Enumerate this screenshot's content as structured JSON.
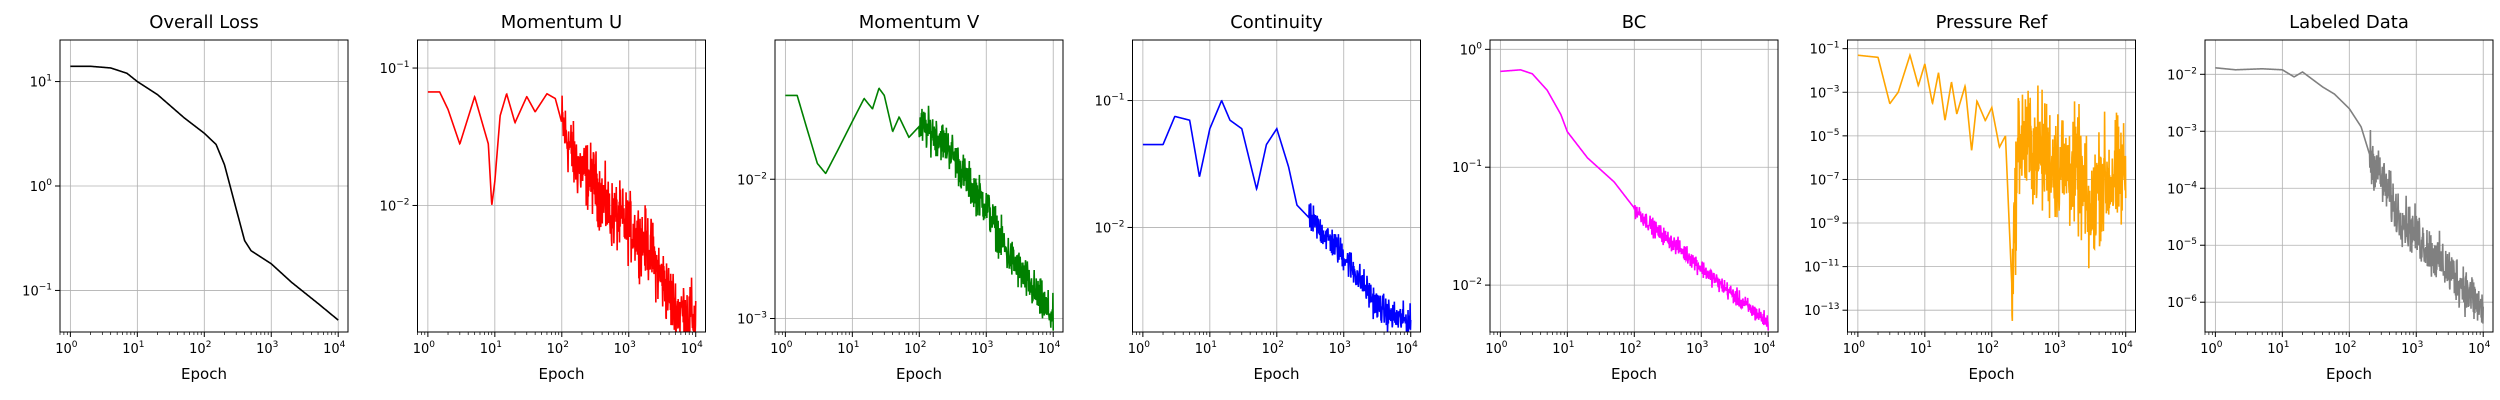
{
  "chart_data": [
    {
      "type": "line",
      "title": "Overall Loss",
      "xlabel": "Epoch",
      "ylabel": "",
      "xscale": "log",
      "yscale": "log",
      "grid": true,
      "xlim": [
        0.7,
        14000
      ],
      "ylim": [
        0.04,
        25
      ],
      "x_ticks": [
        {
          "base": "10",
          "exp": "0"
        },
        {
          "base": "10",
          "exp": "1"
        },
        {
          "base": "10",
          "exp": "2"
        },
        {
          "base": "10",
          "exp": "3"
        },
        {
          "base": "10",
          "exp": "4"
        }
      ],
      "y_ticks": [
        {
          "base": "10",
          "exp": "1"
        },
        {
          "base": "10",
          "exp": "0"
        },
        {
          "base": "10",
          "exp": "−1"
        }
      ],
      "series": [
        {
          "color": "#000000",
          "noise": 0.0,
          "noise_start": 300,
          "points": [
            [
              1,
              14
            ],
            [
              2,
              14
            ],
            [
              4,
              13.5
            ],
            [
              7,
              12
            ],
            [
              10,
              10
            ],
            [
              20,
              7.5
            ],
            [
              50,
              4.5
            ],
            [
              100,
              3.2
            ],
            [
              150,
              2.5
            ],
            [
              200,
              1.6
            ],
            [
              300,
              0.6
            ],
            [
              400,
              0.3
            ],
            [
              500,
              0.24
            ],
            [
              1000,
              0.18
            ],
            [
              2000,
              0.12
            ],
            [
              5000,
              0.075
            ],
            [
              10000,
              0.052
            ]
          ]
        }
      ]
    },
    {
      "type": "line",
      "title": "Momentum U",
      "xlabel": "Epoch",
      "ylabel": "",
      "xscale": "log",
      "yscale": "log",
      "grid": true,
      "xlim": [
        0.7,
        14000
      ],
      "ylim": [
        0.0012,
        0.16
      ],
      "x_ticks": [
        {
          "base": "10",
          "exp": "0"
        },
        {
          "base": "10",
          "exp": "1"
        },
        {
          "base": "10",
          "exp": "2"
        },
        {
          "base": "10",
          "exp": "3"
        },
        {
          "base": "10",
          "exp": "4"
        }
      ],
      "y_ticks": [
        {
          "base": "10",
          "exp": "−1"
        },
        {
          "base": "10",
          "exp": "−2"
        }
      ],
      "series": [
        {
          "color": "#ff0000",
          "noise": 0.2,
          "noise_start": 100,
          "points": [
            [
              1,
              0.067
            ],
            [
              1.5,
              0.067
            ],
            [
              2,
              0.05
            ],
            [
              3,
              0.028
            ],
            [
              5,
              0.062
            ],
            [
              8,
              0.028
            ],
            [
              9,
              0.01
            ],
            [
              10,
              0.015
            ],
            [
              12,
              0.045
            ],
            [
              15,
              0.065
            ],
            [
              20,
              0.04
            ],
            [
              30,
              0.062
            ],
            [
              40,
              0.048
            ],
            [
              60,
              0.065
            ],
            [
              80,
              0.06
            ],
            [
              100,
              0.04
            ],
            [
              150,
              0.022
            ],
            [
              200,
              0.018
            ],
            [
              300,
              0.015
            ],
            [
              500,
              0.009
            ],
            [
              1000,
              0.007
            ],
            [
              2000,
              0.005
            ],
            [
              3000,
              0.003
            ],
            [
              5000,
              0.0018
            ],
            [
              10000,
              0.0015
            ]
          ]
        }
      ]
    },
    {
      "type": "line",
      "title": "Momentum V",
      "xlabel": "Epoch",
      "ylabel": "",
      "xscale": "log",
      "yscale": "log",
      "grid": true,
      "xlim": [
        0.7,
        14000
      ],
      "ylim": [
        0.0008,
        0.1
      ],
      "x_ticks": [
        {
          "base": "10",
          "exp": "0"
        },
        {
          "base": "10",
          "exp": "1"
        },
        {
          "base": "10",
          "exp": "2"
        },
        {
          "base": "10",
          "exp": "3"
        },
        {
          "base": "10",
          "exp": "4"
        }
      ],
      "y_ticks": [
        {
          "base": "10",
          "exp": "−2"
        },
        {
          "base": "10",
          "exp": "−3"
        }
      ],
      "series": [
        {
          "color": "#008000",
          "noise": 0.12,
          "noise_start": 100,
          "points": [
            [
              1,
              0.04
            ],
            [
              1.5,
              0.04
            ],
            [
              2,
              0.025
            ],
            [
              3,
              0.013
            ],
            [
              4,
              0.011
            ],
            [
              6,
              0.016
            ],
            [
              10,
              0.026
            ],
            [
              15,
              0.038
            ],
            [
              20,
              0.032
            ],
            [
              25,
              0.045
            ],
            [
              30,
              0.04
            ],
            [
              40,
              0.022
            ],
            [
              50,
              0.028
            ],
            [
              70,
              0.02
            ],
            [
              100,
              0.024
            ],
            [
              150,
              0.022
            ],
            [
              200,
              0.02
            ],
            [
              300,
              0.016
            ],
            [
              500,
              0.01
            ],
            [
              1000,
              0.0065
            ],
            [
              2000,
              0.003
            ],
            [
              5000,
              0.0016
            ],
            [
              10000,
              0.001
            ]
          ]
        }
      ]
    },
    {
      "type": "line",
      "title": "Continuity",
      "xlabel": "Epoch",
      "ylabel": "",
      "xscale": "log",
      "yscale": "log",
      "grid": true,
      "xlim": [
        0.7,
        14000
      ],
      "ylim": [
        0.0015,
        0.3
      ],
      "x_ticks": [
        {
          "base": "10",
          "exp": "0"
        },
        {
          "base": "10",
          "exp": "1"
        },
        {
          "base": "10",
          "exp": "2"
        },
        {
          "base": "10",
          "exp": "3"
        },
        {
          "base": "10",
          "exp": "4"
        }
      ],
      "y_ticks": [
        {
          "base": "10",
          "exp": "−1"
        },
        {
          "base": "10",
          "exp": "−2"
        }
      ],
      "series": [
        {
          "color": "#0000ff",
          "noise": 0.1,
          "noise_start": 300,
          "points": [
            [
              1,
              0.045
            ],
            [
              2,
              0.045
            ],
            [
              3,
              0.075
            ],
            [
              5,
              0.07
            ],
            [
              7,
              0.025
            ],
            [
              10,
              0.06
            ],
            [
              15,
              0.1
            ],
            [
              20,
              0.07
            ],
            [
              30,
              0.06
            ],
            [
              50,
              0.02
            ],
            [
              70,
              0.045
            ],
            [
              100,
              0.06
            ],
            [
              150,
              0.03
            ],
            [
              200,
              0.015
            ],
            [
              300,
              0.012
            ],
            [
              500,
              0.009
            ],
            [
              1000,
              0.006
            ],
            [
              2000,
              0.0035
            ],
            [
              3000,
              0.0025
            ],
            [
              5000,
              0.002
            ],
            [
              10000,
              0.0018
            ]
          ]
        }
      ]
    },
    {
      "type": "line",
      "title": "BC",
      "xlabel": "Epoch",
      "ylabel": "",
      "xscale": "log",
      "yscale": "log",
      "grid": true,
      "xlim": [
        0.7,
        14000
      ],
      "ylim": [
        0.004,
        1.2
      ],
      "x_ticks": [
        {
          "base": "10",
          "exp": "0"
        },
        {
          "base": "10",
          "exp": "1"
        },
        {
          "base": "10",
          "exp": "2"
        },
        {
          "base": "10",
          "exp": "3"
        },
        {
          "base": "10",
          "exp": "4"
        }
      ],
      "y_ticks": [
        {
          "base": "10",
          "exp": "0"
        },
        {
          "base": "10",
          "exp": "−1"
        },
        {
          "base": "10",
          "exp": "−2"
        }
      ],
      "series": [
        {
          "color": "#ff00ff",
          "noise": 0.06,
          "noise_start": 100,
          "points": [
            [
              1,
              0.65
            ],
            [
              2,
              0.67
            ],
            [
              3,
              0.62
            ],
            [
              5,
              0.45
            ],
            [
              8,
              0.28
            ],
            [
              10,
              0.2
            ],
            [
              20,
              0.12
            ],
            [
              50,
              0.075
            ],
            [
              100,
              0.045
            ],
            [
              200,
              0.03
            ],
            [
              500,
              0.02
            ],
            [
              1000,
              0.014
            ],
            [
              2000,
              0.01
            ],
            [
              5000,
              0.0065
            ],
            [
              10000,
              0.0048
            ]
          ]
        }
      ]
    },
    {
      "type": "line",
      "title": "Pressure Ref",
      "xlabel": "Epoch",
      "ylabel": "",
      "xscale": "log",
      "yscale": "log",
      "grid": true,
      "xlim": [
        0.7,
        14000
      ],
      "ylim": [
        1e-14,
        0.25
      ],
      "x_ticks": [
        {
          "base": "10",
          "exp": "0"
        },
        {
          "base": "10",
          "exp": "1"
        },
        {
          "base": "10",
          "exp": "2"
        },
        {
          "base": "10",
          "exp": "3"
        },
        {
          "base": "10",
          "exp": "4"
        }
      ],
      "y_ticks": [
        {
          "base": "10",
          "exp": "−1"
        },
        {
          "base": "10",
          "exp": "−3"
        },
        {
          "base": "10",
          "exp": "−5"
        },
        {
          "base": "10",
          "exp": "−7"
        },
        {
          "base": "10",
          "exp": "−9"
        },
        {
          "base": "10",
          "exp": "−11"
        },
        {
          "base": "10",
          "exp": "−13"
        }
      ],
      "series": [
        {
          "color": "#ffa500",
          "noise": 2.2,
          "noise_start": 200,
          "points": [
            [
              1,
              0.05
            ],
            [
              2,
              0.04
            ],
            [
              3,
              0.0003
            ],
            [
              4,
              0.001
            ],
            [
              6,
              0.05
            ],
            [
              8,
              0.002
            ],
            [
              10,
              0.02
            ],
            [
              13,
              0.0003
            ],
            [
              16,
              0.008
            ],
            [
              20,
              5e-05
            ],
            [
              25,
              0.003
            ],
            [
              30,
              0.0001
            ],
            [
              40,
              0.002
            ],
            [
              50,
              2e-06
            ],
            [
              60,
              0.0004
            ],
            [
              80,
              5e-05
            ],
            [
              100,
              0.0002
            ],
            [
              130,
              3e-06
            ],
            [
              160,
              1e-05
            ],
            [
              200,
              1e-12
            ],
            [
              250,
              1e-05
            ],
            [
              300,
              5e-06
            ],
            [
              500,
              2e-06
            ],
            [
              1000,
              5e-07
            ],
            [
              2000,
              2e-07
            ],
            [
              3000,
              1e-09
            ],
            [
              4000,
              1e-07
            ],
            [
              6000,
              1e-07
            ],
            [
              10000,
              2e-07
            ]
          ]
        }
      ]
    },
    {
      "type": "line",
      "title": "Labeled Data",
      "xlabel": "Epoch",
      "ylabel": "",
      "xscale": "log",
      "yscale": "log",
      "grid": true,
      "xlim": [
        0.7,
        14000
      ],
      "ylim": [
        3e-07,
        0.04
      ],
      "x_ticks": [
        {
          "base": "10",
          "exp": "0"
        },
        {
          "base": "10",
          "exp": "1"
        },
        {
          "base": "10",
          "exp": "2"
        },
        {
          "base": "10",
          "exp": "3"
        },
        {
          "base": "10",
          "exp": "4"
        }
      ],
      "y_ticks": [
        {
          "base": "10",
          "exp": "−2"
        },
        {
          "base": "10",
          "exp": "−3"
        },
        {
          "base": "10",
          "exp": "−4"
        },
        {
          "base": "10",
          "exp": "−5"
        },
        {
          "base": "10",
          "exp": "−6"
        }
      ],
      "series": [
        {
          "color": "#808080",
          "noise": 0.35,
          "noise_start": 200,
          "points": [
            [
              1,
              0.013
            ],
            [
              2,
              0.012
            ],
            [
              5,
              0.0125
            ],
            [
              10,
              0.012
            ],
            [
              15,
              0.009
            ],
            [
              20,
              0.011
            ],
            [
              40,
              0.006
            ],
            [
              60,
              0.0045
            ],
            [
              100,
              0.0025
            ],
            [
              150,
              0.0012
            ],
            [
              200,
              0.0004
            ],
            [
              300,
              0.00015
            ],
            [
              500,
              4e-05
            ],
            [
              1000,
              1.5e-05
            ],
            [
              2000,
              6e-06
            ],
            [
              5000,
              2e-06
            ],
            [
              10000,
              7e-07
            ]
          ]
        }
      ]
    }
  ]
}
